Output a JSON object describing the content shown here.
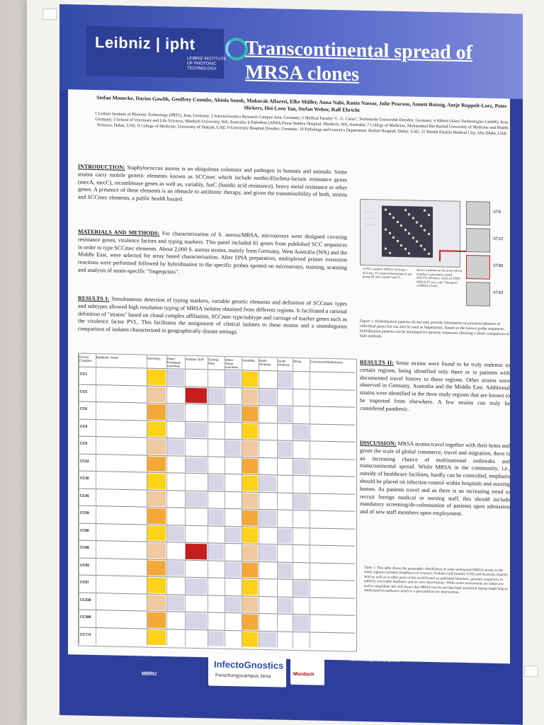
{
  "poster": {
    "logo": "Leibniz",
    "logo_brand": "ipht",
    "logo_subtitle": "LEIBNIZ INSTITUTE OF PHOTONIC TECHNOLOGY",
    "title": "Transcontinental spread of MRSA clones",
    "authors": "Stefan Monecke, Darius Gawlik, Geoffrey Coombs, Abiola Senok, Mubarak Alfaresi, Elke Müller, Anna Nabi, Rania Nassar, Julie Pearson, Annett Reissig, Antje Ruppelt-Lorz, Peter Slickers, Hoi-Leen Tan, Stefan Weber, Ralf Ehricht",
    "affiliations": "1 Leibniz Institute of Photonic Technology (IPHT), Jena, Germany; 2 InfectoGnostics Research Campus Jena, Germany; 3 Medical Faculty \"C. G. Carus\", Technische Universität Dresden, Germany; 4 Abbott (Alere Technologies GmbH), Jena, Germany; 5 School of Veterinary and Life Sciences, Murdoch University, WA, Australia; 6 PathWest LMWA/Fiona Stanley Hospital, Murdoch, WA, Australia; 7 College of Medicine, Mohammed Bin Rashid University of Medicine and Health Sciences, Dubai, UAE; 8 College of Medicine, University of Sharjah, UAE; 9 University Hospital Dresden, Germany; 10 Pathology and Genetics Department, Rashid Hospital, Dubai, UAE; 11 Sheikh Khalifa Medical City, Abu Dhabi, UAE",
    "intro_head": "INTRODUCTION:",
    "intro_body": "Staphylococcus aureus is an ubiquitous colonizer and pathogen in humans and animals. Some strains carry mobile genetic elements known as SCCmec which include methicillin/beta-lactam resistance genes (mecA, mecC), recombinase genes as well as, variably, fusC (fusidic acid resistance), heavy metal resistance or other genes. A presence of these elements is an obstacle to antibiotic therapy, and given the transmissibility of both, strains and SCCmec elements, a public health hazard.",
    "methods_head": "MATERIALS AND METHODS:",
    "methods_body": "For characterization of S. aureus/MRSA, microarrays were designed covering resistance genes, virulence factors and typing markers. This panel included 81 genes from published SCC sequences in order to type SCCmec elements. About 2,000 S. aureus strains, mainly from Germany, West Australia (WA) and the Middle East, were selected for array based characterisation. After DNA preparation, multiplexed primer extension reactions were performed followed by hybridisation to the specific probes spotted on microarrays, staining, scanning and analysis of strain-specific \"fingerprints\".",
    "results1_head": "RESULTS I:",
    "results1_body": "Simultaneous detection of typing markers, variable genetic elements and definition of SCCmec types and subtypes allowed high resolution typing of MRSA isolates obtained from different regions. It facilitated a rational definition of \"strains\" based on clonal complex affiliation, SCCmec type/subtype and carriage of marker genes such as the virulence factor PVL. This facilitates the assignment of clinical isolates to these strains and a unambiguous comparison of isolates characterised in geographically distant settings.",
    "results2_head": "RESULTS II:",
    "results2_body": "Some strains were found to be truly endemic to certain regions, being identified only there or in patients with documented travel history to these regions. Other strains were observed in Germany, Australia and the Middle East. Additional strains were identified in the three study regions that are known to be imported from elsewhere. A few strains can truly be considered pandemic.",
    "discussion_head": "DISCUSSION:",
    "discussion_body": "MRSA strains travel together with their hosts and given the scale of global commerce, travel and migration, there is an increasing chance of multinational outbreaks and transcontinental spread. While MRSA in the community, i.e., outside of healthcare facilities, hardly can be controlled, emphasis should be placed on infection control within hospitals and nursing homes. As patients travel and as there is an increasing trend to recruit foreign medical or nursing staff, this should include mandatory screening/de-colonisation of patients upon admission and of new staff members upon employment.",
    "figure_caption": "Figure 1: Hybridisation patterns do not only provide information on presence/absence of individual genes but can also be used as fingerprints. Based on the known probe sequences, hybridisation patterns can be simulated for genome sequences allowing a direct comparison of both methods.",
    "figure_note": "A PVL-positive MRSA carrying a SCCmec IV element belonging to agr group III and capsule type 8...",
    "figure_note2": "shows a pattern on the array which matches a previously typed (MLST) reference strain of ST80-MRSA-IV a.k.a. the \"European caMRSA Clone\".",
    "st_labels": [
      "ST8",
      "ST22",
      "ST80",
      "ST93"
    ],
    "table_note": "Table 1: This table shows the geographic distribution of some widespread MRSA strains in the study regions Germany (emphasis on Saxony), Arabian Gulf (mainly UAE) and Australia (mainly WA) as well as in other parts of the world based on published literature, genomic sequences in publicly accessible databases and on own observations. While some assessments are subjective and/or simplified, this still shows that MRSA travels and that high resolution typing might help to understand its pathways which is a precondition for intervention.",
    "table_headers": [
      "Clonal Complex",
      "Epidemic Strain",
      "Germany",
      "Other European countries",
      "Arabian Gulf",
      "Central Asia",
      "Other Asian countries",
      "Australia",
      "North America",
      "South America",
      "Africa",
      "Comments/References"
    ],
    "clonal_complexes": [
      "CC1",
      "CC5",
      "CC6",
      "CC8",
      "CC9",
      "CC22",
      "CC30",
      "CC45",
      "CC59",
      "CC80",
      "CC88",
      "CC93",
      "CC97",
      "CC239",
      "CC398",
      "CC772"
    ],
    "contact_label": "Contact:",
    "contact_1": "stefan.monecke@leibniz-ipht.de,",
    "contact_2": "ralf.ehricht@leibniz-ipht.de",
    "website": "www.leibniz-ipht.de",
    "sponsors": [
      "MBRU",
      "InfectoGnostics",
      "Forschungscampus Jena",
      "Murdoch"
    ]
  }
}
